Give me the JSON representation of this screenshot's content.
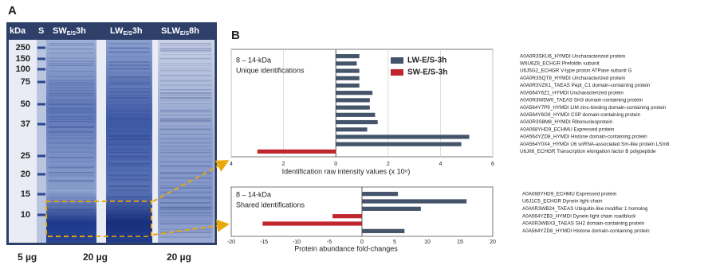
{
  "panel_a": {
    "label": "A",
    "unit": "kDa",
    "lanes": [
      {
        "name": "S"
      },
      {
        "name": "SW",
        "sub": "E/S",
        "time": "3h"
      },
      {
        "name": "LW",
        "sub": "E/S",
        "time": "3h"
      },
      {
        "name": "SLW",
        "sub": "E/S",
        "time": "8h"
      }
    ],
    "markers": [
      250,
      150,
      100,
      75,
      50,
      37,
      25,
      20,
      15,
      10
    ],
    "loads": [
      "5 µg",
      "20 µg",
      "20 µg"
    ]
  },
  "panel_b": {
    "label": "B"
  },
  "chart_data": [
    {
      "type": "bar",
      "orientation": "horizontal",
      "title": "8 – 14-kDa",
      "subtitle": "Unique identifications",
      "x_label": "Identification  raw intensity values (x 10⁸)",
      "categories": [
        "A0A0R3SKU6_HYMDI Uncharacterized protein",
        "W6U6Z8_ECHGR Prefoldin subunit",
        "U6J5G2_ECHGR V-type proton ATPase subunit G",
        "A0A0R3SQT8_HYMDI Uncharacterized protein",
        "A0A0R3VZK1_TAEAS Pept_C1 domain-containing protein",
        "A0A564Y6Z1_HYMDI Uncharacterized protein",
        "A0A0R3W5W0_TAEAS SH3 domain-containing protein",
        "A0A564Y7P9_HYMDI LIM zinc-binding domain-containing protein",
        "A0A564Y6G9_HYMDI CSP domain-containing protein",
        "A0A0R3S8M8_HYMDI Ribonucleoprotein",
        "A0A068YHD9_ECHMU Expressed protein",
        "A0A564YZD8_HYMDI Histone domain-containing protein",
        "A0A564Y0X4_HYMDI U6 snRNA-associated Sm-like protein LSm8",
        "U6JII8_ECHGR Transcription elongation factor B polypeptide"
      ],
      "series": [
        {
          "name": "LW-E/S-3h",
          "color": "#44546a",
          "values": [
            0.9,
            0.8,
            0.9,
            0.9,
            0.9,
            1.4,
            1.3,
            1.3,
            1.5,
            1.6,
            1.2,
            5.1,
            4.8,
            null
          ]
        },
        {
          "name": "SW-E/S-3h",
          "color": "#c0262d",
          "values": [
            null,
            null,
            null,
            null,
            null,
            null,
            null,
            null,
            null,
            null,
            null,
            null,
            null,
            -3.0
          ]
        }
      ],
      "xlim": [
        -4,
        6
      ],
      "xticks": [
        {
          "value": -4,
          "label": "4"
        },
        {
          "value": -2,
          "label": "2"
        },
        0,
        2,
        4,
        6
      ],
      "grid": true,
      "legend": "upper right"
    },
    {
      "type": "bar",
      "orientation": "horizontal",
      "title": "8 – 14-kDa",
      "subtitle": "Shared identifications",
      "x_label": "Protein abundance fold-changes",
      "categories": [
        "A0A068YHD9_ECHMU Expressed protein",
        "U6J1C5_ECHGR Dynein light chain",
        "A0A0R3WB24_TAEAS Ubiquitin-like modifier 1 homolog",
        "A0A564YZB3_HYMDI Dynein light chain roadblock",
        "A0A0R3WBX3_TAEAS SH2 domain-containing protein",
        "A0A564YZD8_HYMDI Histone domain-containing protein"
      ],
      "series": [
        {
          "color": "#44546a",
          "values": [
            5.5,
            16,
            9,
            null,
            null,
            6.5
          ]
        },
        {
          "color": "#c0262d",
          "values": [
            null,
            null,
            null,
            -4.5,
            -15.2,
            null
          ]
        }
      ],
      "xlim": [
        -20,
        20
      ],
      "xticks": [
        -20,
        -15,
        -10,
        -5,
        0,
        5,
        10,
        15,
        20
      ],
      "grid": false
    }
  ]
}
